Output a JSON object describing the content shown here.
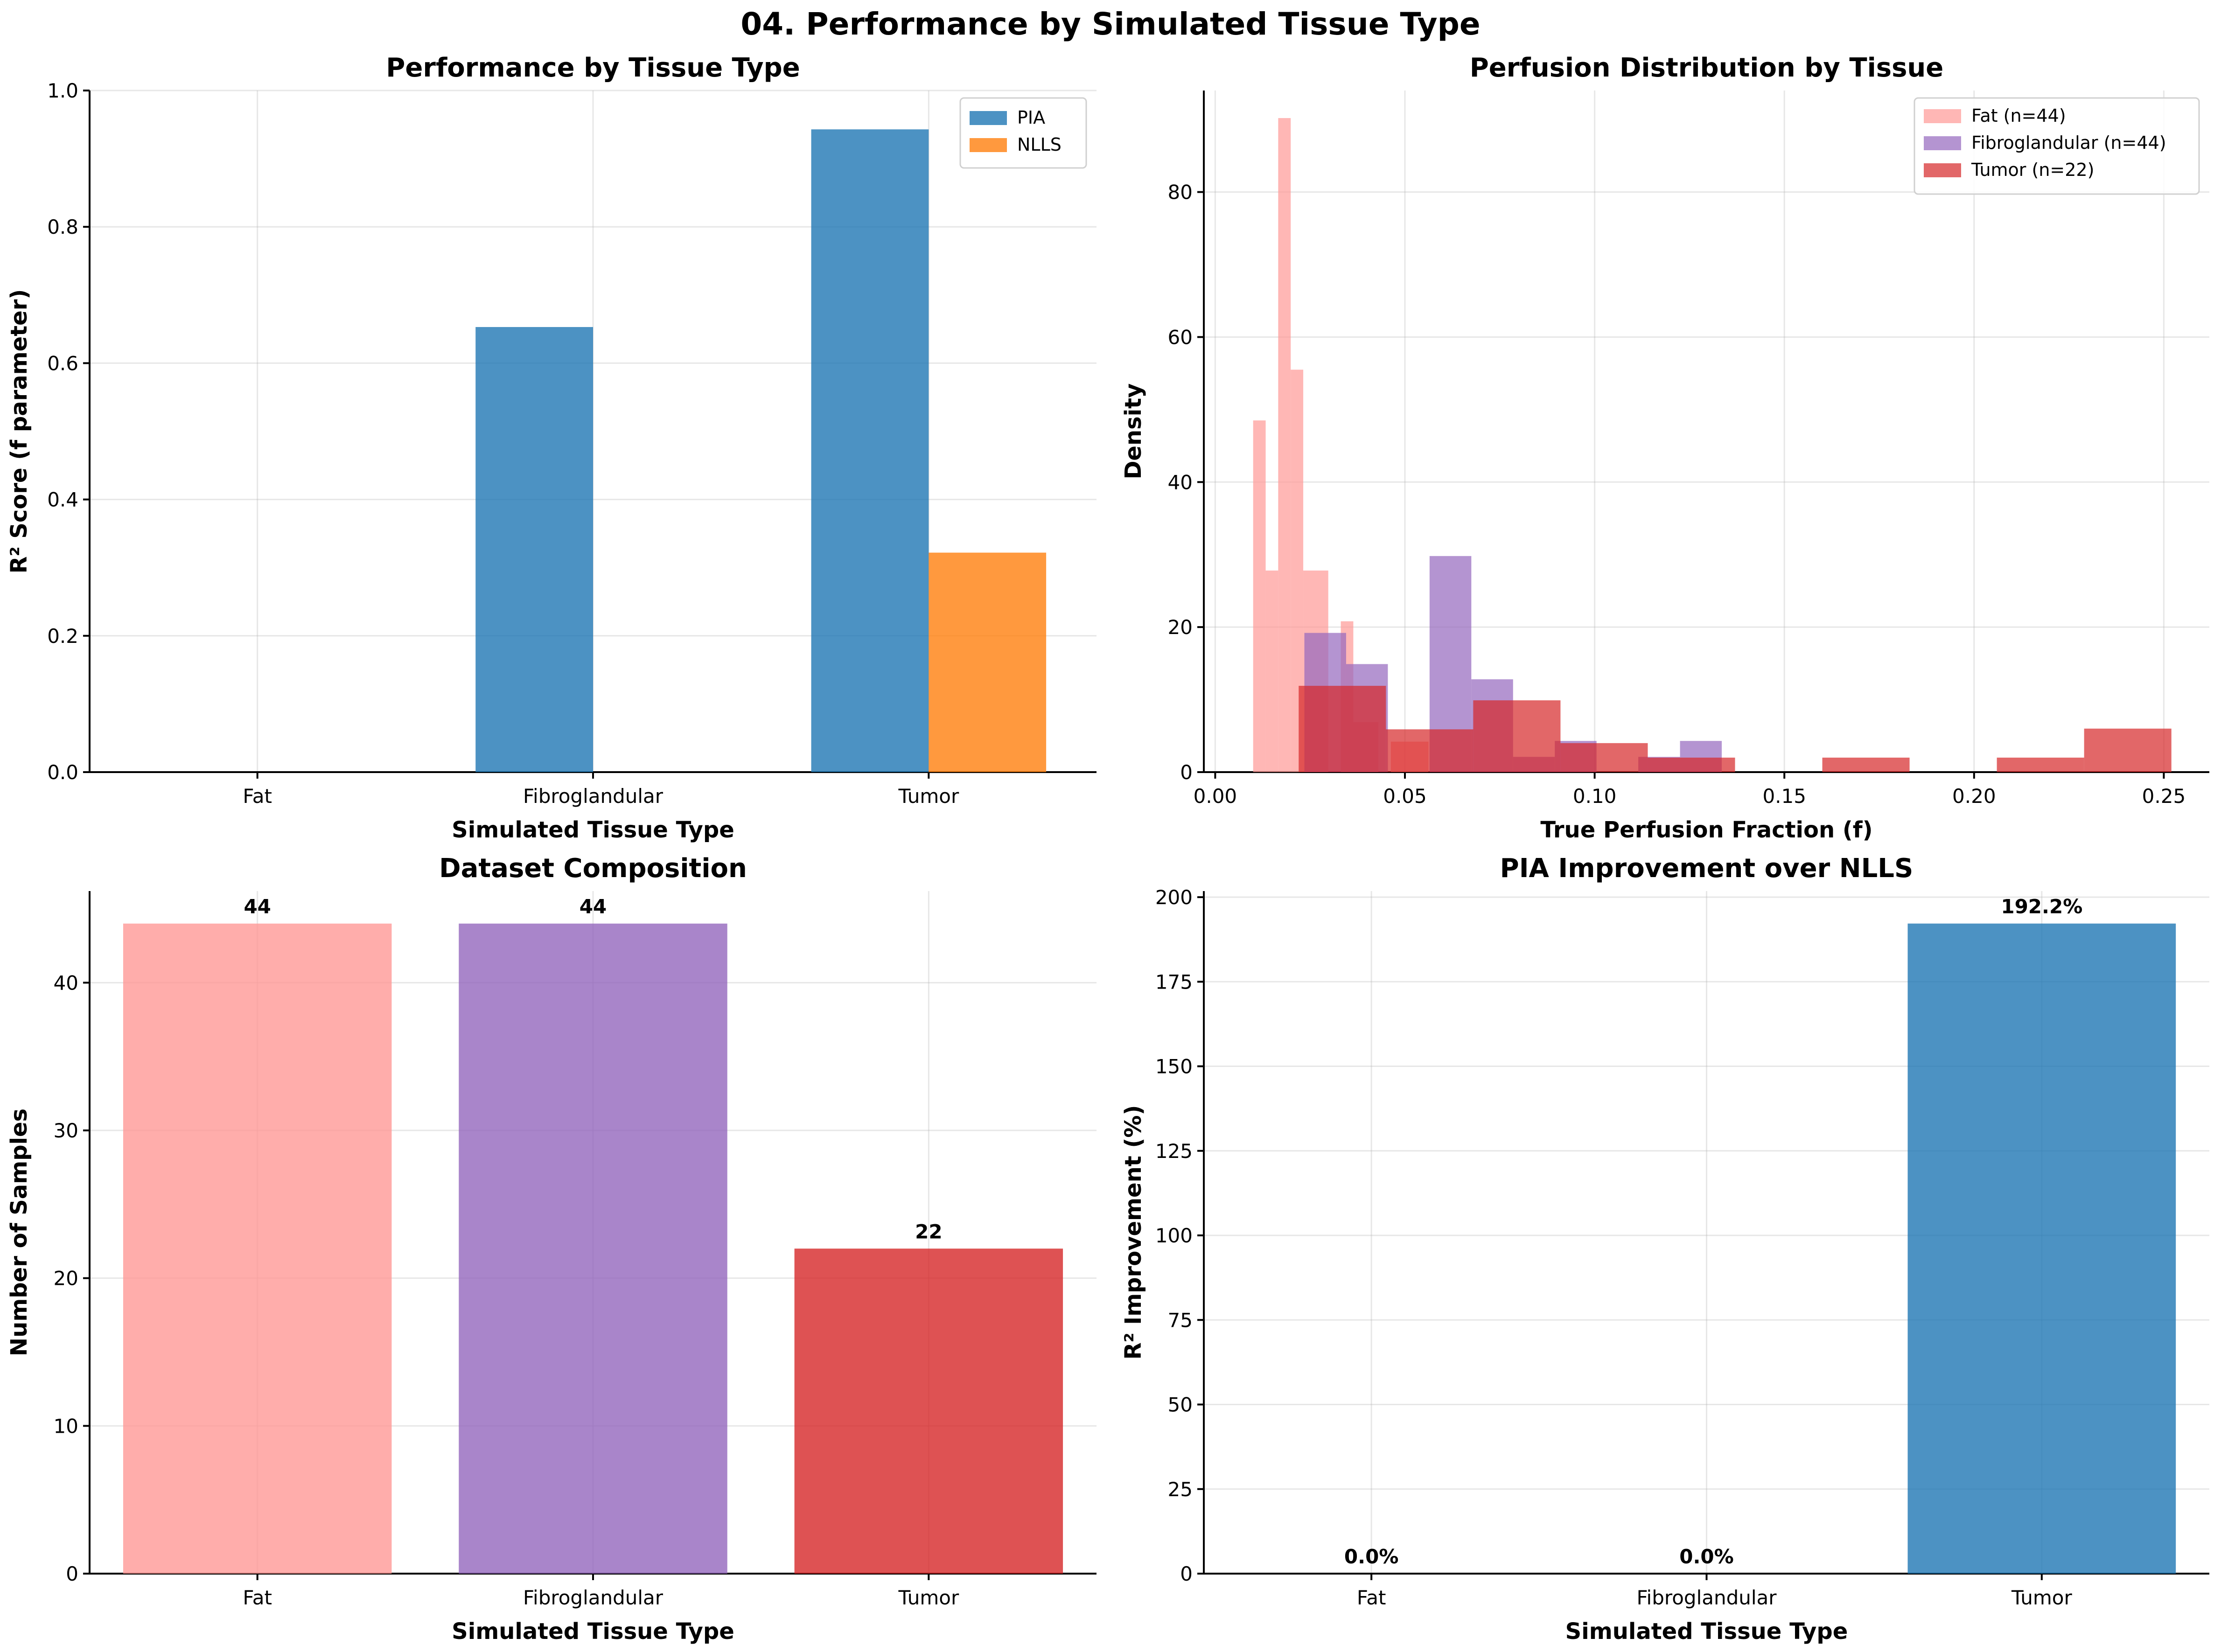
{
  "suptitle": "04. Performance by Simulated Tissue Type",
  "chart_data": [
    {
      "id": "perf",
      "type": "bar",
      "title": "Performance by Tissue Type",
      "xlabel": "Simulated Tissue Type",
      "ylabel": "R² Score (f parameter)",
      "categories": [
        "Fat",
        "Fibroglandular",
        "Tumor"
      ],
      "series": [
        {
          "name": "PIA",
          "values": [
            0.0,
            0.653,
            0.943
          ],
          "color": "#1f77b4"
        },
        {
          "name": "NLLS",
          "values": [
            0.0,
            0.0,
            0.322
          ],
          "color": "#ff7f0e"
        }
      ],
      "ylim": [
        0,
        1.0
      ],
      "yticks": [
        0.0,
        0.2,
        0.4,
        0.6,
        0.8,
        1.0
      ],
      "ytick_labels": [
        "0.0",
        "0.2",
        "0.4",
        "0.6",
        "0.8",
        "1.0"
      ],
      "legend": "top-right",
      "grid": true
    },
    {
      "id": "hist",
      "type": "histogram",
      "title": "Perfusion Distribution by Tissue",
      "xlabel": "True Perfusion Fraction (f)",
      "ylabel": "Density",
      "xlim": [
        -0.003,
        0.262
      ],
      "ylim": [
        0,
        94
      ],
      "xticks": [
        0.0,
        0.05,
        0.1,
        0.15,
        0.2,
        0.25
      ],
      "xtick_labels": [
        "0.00",
        "0.05",
        "0.10",
        "0.15",
        "0.20",
        "0.25"
      ],
      "yticks": [
        0,
        20,
        40,
        60,
        80
      ],
      "ytick_labels": [
        "0",
        "20",
        "40",
        "60",
        "80"
      ],
      "legend": "top-right",
      "grid": true,
      "series": [
        {
          "name": "Fat (n=44)",
          "color": "#ff9896",
          "bins": [
            [
              0.01,
              0.0133,
              48.5
            ],
            [
              0.0133,
              0.0166,
              27.8
            ],
            [
              0.0166,
              0.0199,
              90.2
            ],
            [
              0.0199,
              0.0232,
              55.5
            ],
            [
              0.0232,
              0.0298,
              27.8
            ],
            [
              0.0298,
              0.0331,
              0
            ],
            [
              0.0331,
              0.0364,
              20.8
            ],
            [
              0.0364,
              0.043,
              6.9
            ],
            [
              0.043,
              0.0463,
              0
            ],
            [
              0.0463,
              0.0562,
              4.2
            ],
            [
              0.0562,
              0.0628,
              0
            ]
          ]
        },
        {
          "name": "Fibroglandular (n=44)",
          "color": "#9467bd",
          "bins": [
            [
              0.0235,
              0.0345,
              19.2
            ],
            [
              0.0345,
              0.0455,
              14.9
            ],
            [
              0.0455,
              0.0565,
              0
            ],
            [
              0.0565,
              0.0675,
              29.8
            ],
            [
              0.0675,
              0.0785,
              12.8
            ],
            [
              0.0785,
              0.0895,
              2.1
            ],
            [
              0.0895,
              0.1005,
              4.3
            ],
            [
              0.1005,
              0.1115,
              0
            ],
            [
              0.1115,
              0.1225,
              2.1
            ],
            [
              0.1225,
              0.1335,
              4.3
            ]
          ]
        },
        {
          "name": "Tumor (n=22)",
          "color": "#d62728",
          "bins": [
            [
              0.022,
              0.045,
              11.9
            ],
            [
              0.045,
              0.068,
              5.9
            ],
            [
              0.068,
              0.091,
              9.9
            ],
            [
              0.091,
              0.114,
              4.0
            ],
            [
              0.114,
              0.137,
              2.0
            ],
            [
              0.137,
              0.16,
              0
            ],
            [
              0.16,
              0.183,
              2.0
            ],
            [
              0.183,
              0.206,
              0
            ],
            [
              0.206,
              0.229,
              2.0
            ],
            [
              0.229,
              0.252,
              6.0
            ]
          ]
        }
      ]
    },
    {
      "id": "comp",
      "type": "bar",
      "title": "Dataset Composition",
      "xlabel": "Simulated Tissue Type",
      "ylabel": "Number of Samples",
      "categories": [
        "Fat",
        "Fibroglandular",
        "Tumor"
      ],
      "values": [
        44,
        44,
        22
      ],
      "value_labels": [
        "44",
        "44",
        "22"
      ],
      "colors": [
        "#ff9896",
        "#9467bd",
        "#d62728"
      ],
      "ylim": [
        0,
        46.2
      ],
      "yticks": [
        0,
        10,
        20,
        30,
        40
      ],
      "ytick_labels": [
        "0",
        "10",
        "20",
        "30",
        "40"
      ],
      "grid": true
    },
    {
      "id": "impr",
      "type": "bar",
      "title": "PIA Improvement over NLLS",
      "xlabel": "Simulated Tissue Type",
      "ylabel": "R² Improvement (%)",
      "categories": [
        "Fat",
        "Fibroglandular",
        "Tumor"
      ],
      "values": [
        0.0,
        0.0,
        192.2
      ],
      "value_labels": [
        "0.0%",
        "0.0%",
        "192.2%"
      ],
      "color": "#1f77b4",
      "ylim": [
        0,
        201.8
      ],
      "yticks": [
        0,
        25,
        50,
        75,
        100,
        125,
        150,
        175,
        200
      ],
      "ytick_labels": [
        "0",
        "25",
        "50",
        "75",
        "100",
        "125",
        "150",
        "175",
        "200"
      ],
      "grid": true
    }
  ]
}
